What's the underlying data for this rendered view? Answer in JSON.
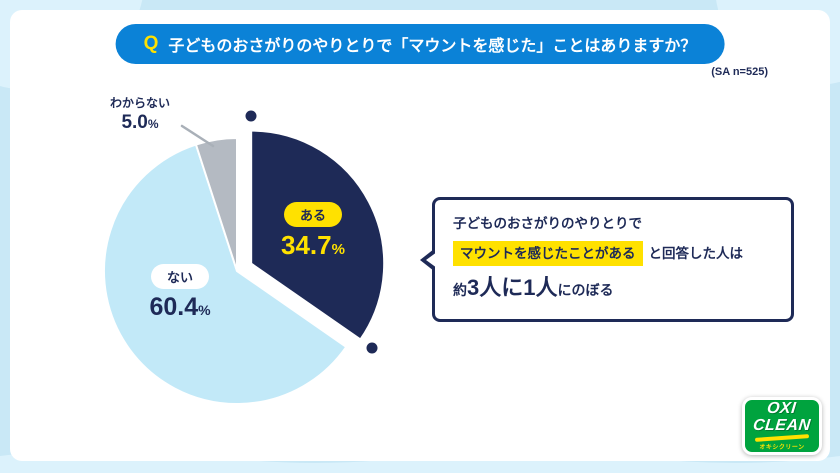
{
  "page": {
    "question_prefix": "Q",
    "question": "子どものおさがりのやりとりで「マウントを感じた」ことはありますか？",
    "sample_note": "(SA n=525)"
  },
  "chart_data": {
    "type": "pie",
    "title": "子どものおさがりのやりとりで「マウントを感じた」ことはありますか？",
    "sample_note": "(SA n=525)",
    "unit": "%",
    "start_angle_deg": 0,
    "direction": "clockwise",
    "legend": "none",
    "slices": [
      {
        "label": "ある",
        "value": 34.7,
        "color": "#1e2a57",
        "exploded": true
      },
      {
        "label": "ない",
        "value": 60.4,
        "color": "#c2e9f8",
        "exploded": false
      },
      {
        "label": "わからない",
        "value": 5.0,
        "color": "#b4bac2",
        "exploded": false
      }
    ]
  },
  "pie_labels": {
    "aru": {
      "label": "ある",
      "value": "34.7",
      "unit": "%"
    },
    "nai": {
      "label": "ない",
      "value": "60.4",
      "unit": "%"
    },
    "wakaranai": {
      "label": "わからない",
      "value": "5.0",
      "unit": "%"
    }
  },
  "callout": {
    "line1": "子どものおさがりのやりとりで",
    "highlight": "マウントを感じたことがある",
    "line2_suffix": "と回答した人は",
    "line3_prefix": "約",
    "line3_emphasis": "3人に1人",
    "line3_suffix": "にのぼる"
  },
  "logo": {
    "brand_line1": "OXI",
    "brand_line2": "CLEAN",
    "brand_sub": "オキシクリーン"
  },
  "colors": {
    "navy": "#1e2a57",
    "yellow": "#ffe100",
    "banner_blue": "#0b82d7",
    "pie_light_blue": "#c2e9f8",
    "pie_gray": "#b4bac2",
    "background_blue": "#c9e8f6",
    "logo_green": "#00a33e"
  }
}
